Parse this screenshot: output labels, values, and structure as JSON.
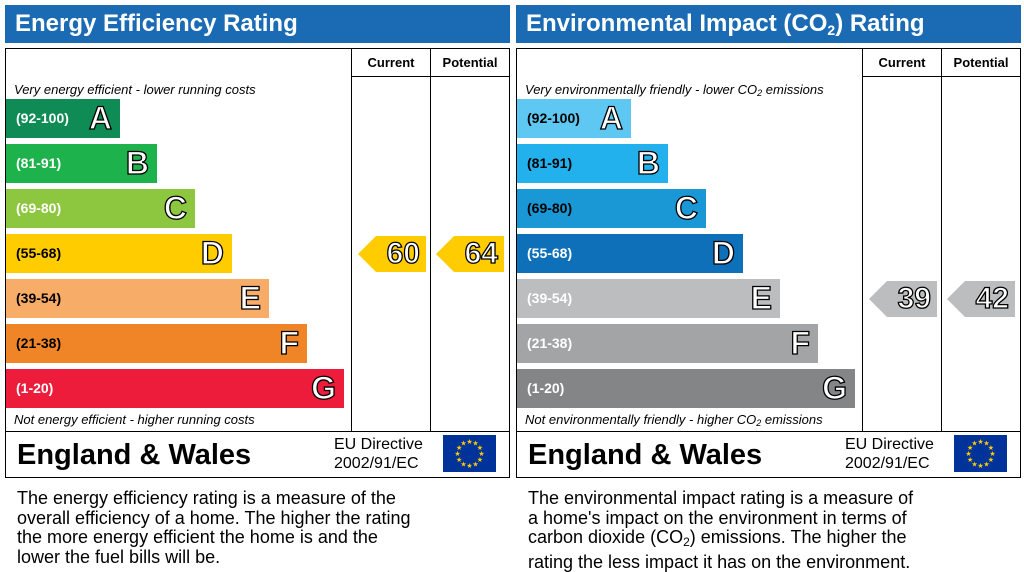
{
  "chart_data": [
    {
      "type": "bar",
      "title": "Energy Efficiency Rating",
      "columns": [
        "Current",
        "Potential"
      ],
      "top_note": "Very energy efficient - lower running costs",
      "bottom_note": "Not energy efficient - higher running costs",
      "bands": [
        {
          "range": "(92-100)",
          "letter": "A",
          "color": "#0f8c55"
        },
        {
          "range": "(81-91)",
          "letter": "B",
          "color": "#1db24b"
        },
        {
          "range": "(69-80)",
          "letter": "C",
          "color": "#8dc63f"
        },
        {
          "range": "(55-68)",
          "letter": "D",
          "color": "#ffcc00"
        },
        {
          "range": "(39-54)",
          "letter": "E",
          "color": "#f7ac68"
        },
        {
          "range": "(21-38)",
          "letter": "F",
          "color": "#f08527"
        },
        {
          "range": "(1-20)",
          "letter": "G",
          "color": "#ed1c3a"
        }
      ],
      "current": {
        "value": 60,
        "band": "D",
        "color": "#ffcc00"
      },
      "potential": {
        "value": 64,
        "band": "D",
        "color": "#ffcc00"
      },
      "region": "England & Wales",
      "eu_line1": "EU Directive",
      "eu_line2": "2002/91/EC",
      "description": [
        "The energy efficiency rating is a measure of the",
        "overall efficiency of a home. The higher the rating",
        "the more energy efficient the home is and the",
        "lower the fuel bills will be."
      ]
    },
    {
      "type": "bar",
      "title_prefix": "Environmental Impact (CO",
      "title_sub": "2",
      "title_suffix": ") Rating",
      "columns": [
        "Current",
        "Potential"
      ],
      "top_note_prefix": "Very environmentally friendly - lower CO",
      "top_note_sub": "2",
      "top_note_suffix": " emissions",
      "bottom_note_prefix": "Not environmentally friendly - higher CO",
      "bottom_note_sub": "2",
      "bottom_note_suffix": " emissions",
      "bands": [
        {
          "range": "(92-100)",
          "letter": "A",
          "color": "#5ec8f2"
        },
        {
          "range": "(81-91)",
          "letter": "B",
          "color": "#22b1ec"
        },
        {
          "range": "(69-80)",
          "letter": "C",
          "color": "#1a98d6"
        },
        {
          "range": "(55-68)",
          "letter": "D",
          "color": "#0d70b9"
        },
        {
          "range": "(39-54)",
          "letter": "E",
          "color": "#bbbdbf"
        },
        {
          "range": "(21-38)",
          "letter": "F",
          "color": "#a2a4a6"
        },
        {
          "range": "(1-20)",
          "letter": "G",
          "color": "#838587"
        }
      ],
      "current": {
        "value": 39,
        "band": "E",
        "color": "#bbbdbf"
      },
      "potential": {
        "value": 42,
        "band": "E",
        "color": "#bbbdbf"
      },
      "region": "England & Wales",
      "eu_line1": "EU Directive",
      "eu_line2": "2002/91/EC",
      "description_line1": "The environmental impact rating is a measure of",
      "description_line2": "a home's impact on the environment in terms of",
      "description_line3_prefix": "carbon dioxide (CO",
      "description_line3_sub": "2",
      "description_line3_suffix": ") emissions. The higher the",
      "description_line4": "rating the less impact it has on the environment."
    }
  ],
  "colors": {
    "title_bar": "#1a6bb3",
    "eu_flag": "#003399",
    "eu_stars": "#ffcc00"
  }
}
